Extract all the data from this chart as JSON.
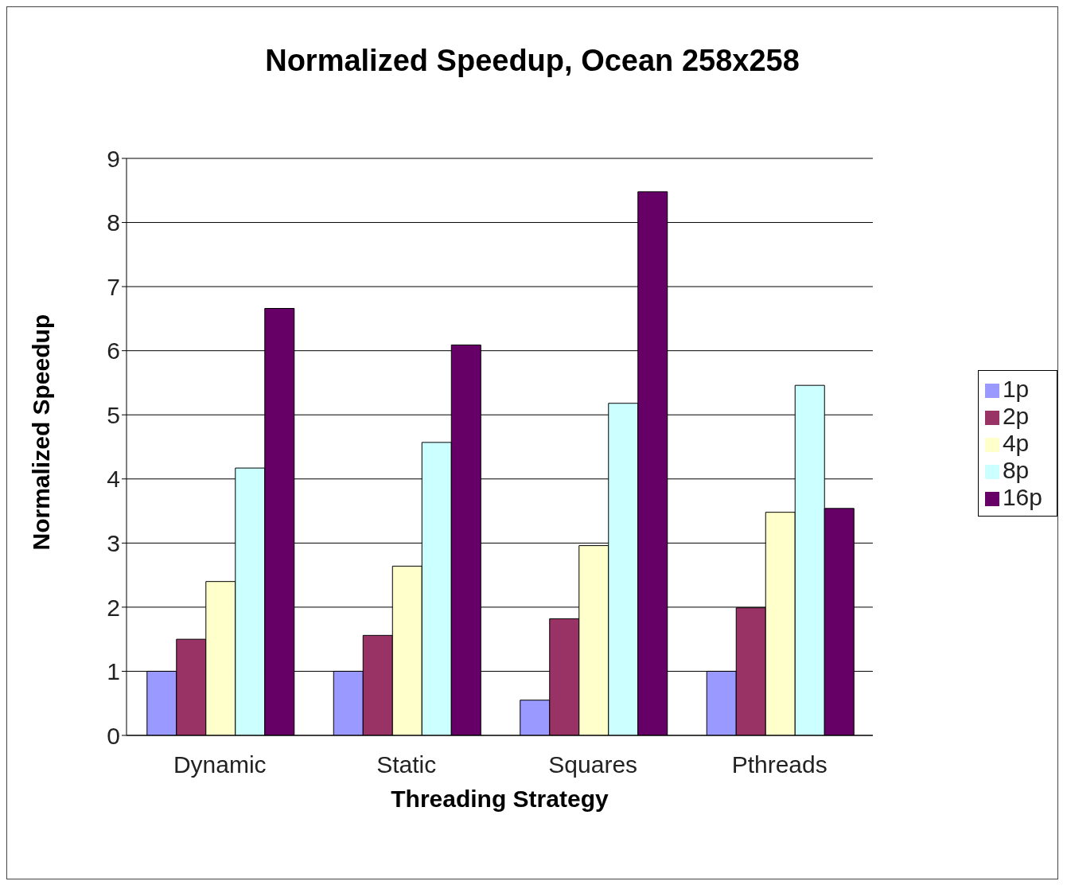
{
  "chart_data": {
    "type": "bar",
    "title": "Normalized Speedup, Ocean 258x258",
    "xlabel": "Threading Strategy",
    "ylabel": "Normalized Speedup",
    "categories": [
      "Dynamic",
      "Static",
      "Squares",
      "Pthreads"
    ],
    "series": [
      {
        "name": "1p",
        "color": "#9999ff",
        "values": [
          1.0,
          1.0,
          0.55,
          1.0
        ]
      },
      {
        "name": "2p",
        "color": "#993366",
        "values": [
          1.5,
          1.56,
          1.82,
          1.99
        ]
      },
      {
        "name": "4p",
        "color": "#ffffcc",
        "values": [
          2.4,
          2.64,
          2.96,
          3.48
        ]
      },
      {
        "name": "8p",
        "color": "#ccffff",
        "values": [
          4.17,
          4.57,
          5.18,
          5.46
        ]
      },
      {
        "name": "16p",
        "color": "#660066",
        "values": [
          6.66,
          6.09,
          8.48,
          3.54
        ]
      }
    ],
    "ylim": [
      0,
      9
    ],
    "yticks": [
      0,
      1,
      2,
      3,
      4,
      5,
      6,
      7,
      8,
      9
    ],
    "grid": "y",
    "legend": "right"
  }
}
